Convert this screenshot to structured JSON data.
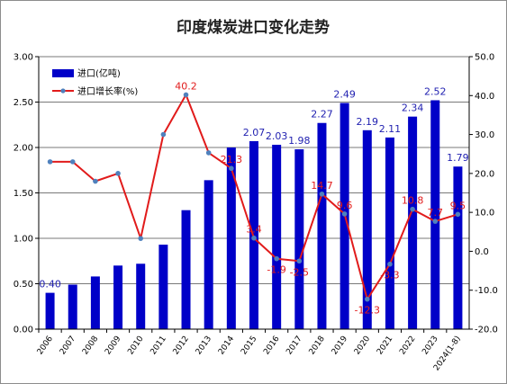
{
  "chart_data": {
    "type": "bar",
    "title": "印度煤炭进口变化走势",
    "categories": [
      "2006",
      "2007",
      "2008",
      "2009",
      "2010",
      "2011",
      "2012",
      "2013",
      "2014",
      "2015",
      "2016",
      "2017",
      "2018",
      "2019",
      "2020",
      "2021",
      "2022",
      "2023",
      "2024(1-8)"
    ],
    "series": [
      {
        "name": "进口(亿吨)",
        "type": "bar",
        "axis": "left",
        "color": "#0000c8",
        "values": [
          0.4,
          0.49,
          0.58,
          0.7,
          0.72,
          0.93,
          1.31,
          1.64,
          2.0,
          2.07,
          2.03,
          1.98,
          2.27,
          2.49,
          2.19,
          2.11,
          2.34,
          2.52,
          1.79
        ],
        "labels": [
          "0.40",
          "",
          "",
          "",
          "",
          "",
          "",
          "",
          "",
          "2.07",
          "2.03",
          "1.98",
          "2.27",
          "2.49",
          "2.19",
          "2.11",
          "2.34",
          "2.52",
          "1.79"
        ]
      },
      {
        "name": "进口增长率(%)",
        "type": "line",
        "axis": "right",
        "color": "#e11b1b",
        "marker_color": "#4f81bd",
        "values": [
          23.0,
          23.0,
          18.0,
          20.0,
          3.3,
          30.0,
          40.2,
          25.3,
          21.3,
          3.4,
          -1.9,
          -2.5,
          14.7,
          9.6,
          -12.3,
          -3.3,
          10.8,
          7.7,
          9.5
        ],
        "labels": [
          "",
          "",
          "",
          "",
          "",
          "",
          "40.2",
          "",
          "21.3",
          "3.4",
          "-1.9",
          "-2.5",
          "14.7",
          "9.6",
          "-12.3",
          "-3.3",
          "10.8",
          "7.7",
          "9.5"
        ]
      }
    ],
    "y_left": {
      "ylim": [
        0,
        3.0
      ],
      "ticks": [
        "0.00",
        "0.50",
        "1.00",
        "1.50",
        "2.00",
        "2.50",
        "3.00"
      ]
    },
    "y_right": {
      "ylim": [
        -20,
        50
      ],
      "ticks": [
        "-20.0",
        "-10.0",
        "0.0",
        "10.0",
        "20.0",
        "30.0",
        "40.0",
        "50.0"
      ]
    },
    "legend": {
      "placement": "top-left"
    },
    "grid": "horizontal"
  }
}
